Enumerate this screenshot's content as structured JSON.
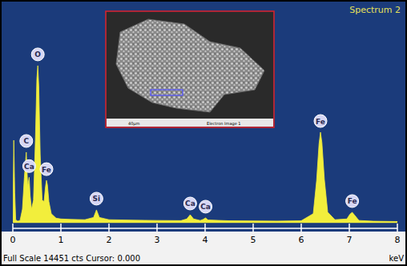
{
  "chart_data": {
    "type": "area",
    "title": "Spectrum 2",
    "x_label": "keV",
    "footer": "Full Scale 14451 cts Cursor: 0.000",
    "color": "#f2ee3c",
    "x": [
      0.0,
      0.02,
      0.04,
      0.06,
      0.1,
      0.15,
      0.2,
      0.24,
      0.28,
      0.31,
      0.32,
      0.34,
      0.36,
      0.39,
      0.43,
      0.47,
      0.5,
      0.52,
      0.54,
      0.57,
      0.61,
      0.65,
      0.68,
      0.7,
      0.72,
      0.75,
      0.8,
      0.9,
      1.0,
      1.2,
      1.5,
      1.68,
      1.74,
      1.8,
      2.0,
      2.5,
      3.0,
      3.5,
      3.62,
      3.69,
      3.76,
      3.9,
      3.96,
      4.01,
      4.06,
      4.5,
      5.0,
      5.5,
      6.0,
      6.25,
      6.32,
      6.37,
      6.4,
      6.43,
      6.48,
      6.55,
      6.7,
      6.95,
      7.01,
      7.06,
      7.11,
      7.2,
      7.5,
      8.0
    ],
    "values": [
      0,
      5450,
      2000,
      200,
      100,
      150,
      900,
      3000,
      4660,
      2400,
      2600,
      3000,
      1800,
      900,
      1500,
      5500,
      9500,
      10380,
      9000,
      4500,
      1500,
      1400,
      2400,
      2800,
      2500,
      1400,
      600,
      300,
      250,
      220,
      200,
      350,
      850,
      350,
      200,
      170,
      150,
      140,
      250,
      530,
      250,
      150,
      220,
      320,
      180,
      130,
      120,
      110,
      130,
      600,
      2800,
      5200,
      5980,
      5300,
      2900,
      700,
      200,
      250,
      550,
      690,
      500,
      150,
      100,
      80
    ],
    "xlim": [
      0,
      8
    ],
    "xticks": [
      0,
      1,
      2,
      3,
      4,
      5,
      6,
      7,
      8
    ],
    "ylim": [
      0,
      14451
    ],
    "tick_labels": "x",
    "annotations": [
      {
        "text": "C",
        "x": 0.28
      },
      {
        "text": "Ca",
        "x": 0.34
      },
      {
        "text": "O",
        "x": 0.52
      },
      {
        "text": "Fe",
        "x": 0.7
      },
      {
        "text": "Si",
        "x": 1.74
      },
      {
        "text": "Ca",
        "x": 3.69
      },
      {
        "text": "Ca",
        "x": 4.01
      },
      {
        "text": "Fe",
        "x": 6.4
      },
      {
        "text": "Fe",
        "x": 7.06
      }
    ],
    "inset": {
      "scale_bar": "40µm",
      "caption": "Electron Image 1"
    }
  }
}
